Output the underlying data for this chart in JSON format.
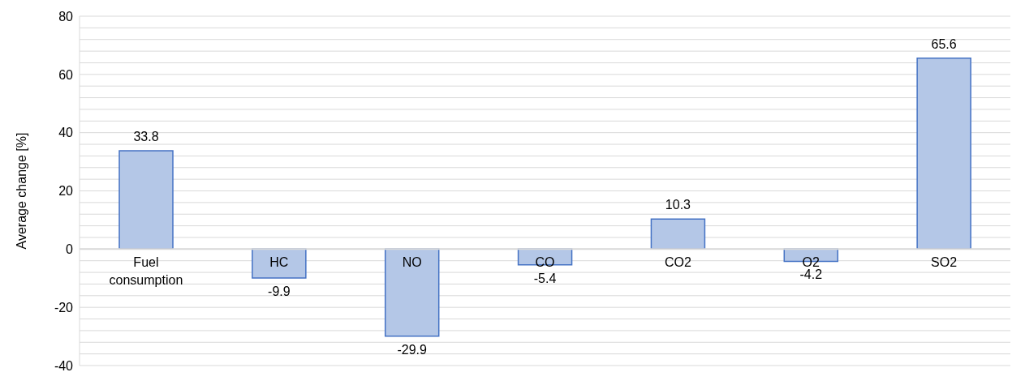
{
  "chart_data": {
    "type": "bar",
    "ylabel": "Average change [%]",
    "categories": [
      "Fuel consumption",
      "HC",
      "NO",
      "CO",
      "CO2",
      "O2",
      "SO2"
    ],
    "values": [
      33.8,
      -9.9,
      -29.9,
      -5.4,
      10.3,
      -4.2,
      65.6
    ],
    "color": "#b4c7e7",
    "ylim": [
      -40,
      80
    ],
    "yticks": [
      -40,
      {
        "value": -36,
        "label": null
      },
      {
        "value": -32,
        "label": null
      },
      {
        "value": -28,
        "label": null
      },
      {
        "value": -24,
        "label": null
      },
      -20,
      {
        "value": -16,
        "label": null
      },
      {
        "value": -12,
        "label": null
      },
      {
        "value": -8,
        "label": null
      },
      {
        "value": -4,
        "label": null
      },
      0,
      {
        "value": 4,
        "label": null
      },
      {
        "value": 8,
        "label": null
      },
      {
        "value": 12,
        "label": null
      },
      {
        "value": 16,
        "label": null
      },
      20,
      {
        "value": 24,
        "label": null
      },
      {
        "value": 28,
        "label": null
      },
      {
        "value": 32,
        "label": null
      },
      {
        "value": 36,
        "label": null
      },
      40,
      {
        "value": 44,
        "label": null
      },
      {
        "value": 48,
        "label": null
      },
      {
        "value": 52,
        "label": null
      },
      {
        "value": 56,
        "label": null
      },
      60,
      {
        "value": 64,
        "label": null
      },
      {
        "value": 68,
        "label": null
      },
      {
        "value": 72,
        "label": null
      },
      {
        "value": 76,
        "label": null
      },
      80
    ],
    "grid": "y",
    "data_labels": true
  }
}
